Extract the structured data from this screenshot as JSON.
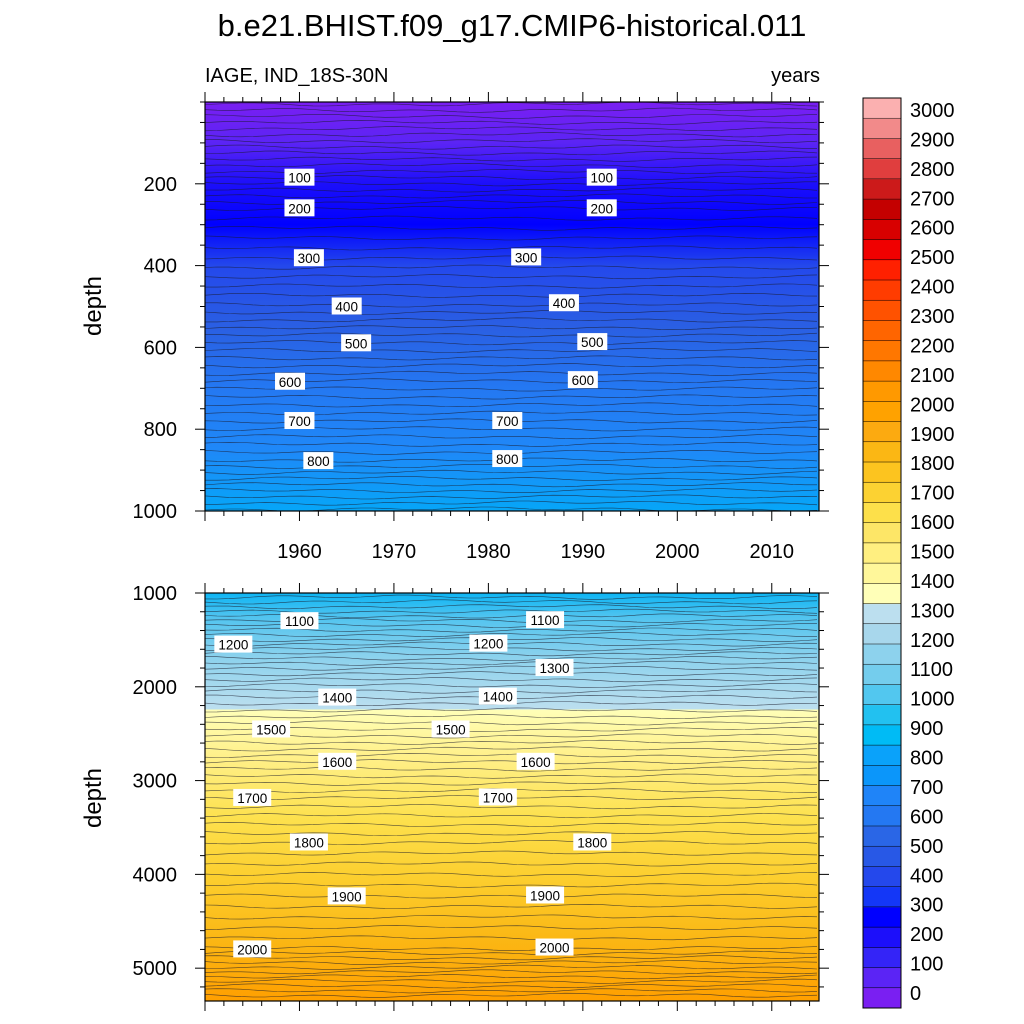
{
  "title": "b.e21.BHIST.f09_g17.CMIP6-historical.011",
  "subtitle_left": "IAGE, IND_18S-30N",
  "subtitle_right": "years",
  "colors": {
    "levels": [
      0,
      100,
      200,
      300,
      400,
      500,
      600,
      700,
      800,
      900,
      1000,
      1100,
      1200,
      1300,
      1400,
      1500,
      1600,
      1700,
      1800,
      1900,
      2000,
      2100,
      2200,
      2300,
      2400,
      2500,
      2600,
      2700,
      2800,
      2900,
      3000
    ],
    "fills": [
      "#7a1ff2",
      "#5b24f5",
      "#3424f7",
      "#1c0ffa",
      "#0000ff",
      "#1437f7",
      "#2448ec",
      "#2858e6",
      "#2a66e6",
      "#2478f2",
      "#1f84f8",
      "#0b96fa",
      "#0aa2fa",
      "#00bbf5",
      "#22c1f0",
      "#52c7ef",
      "#74cded",
      "#8dd2ed",
      "#a8d7ec",
      "#bcdfef",
      "#ffffb8",
      "#fff79a",
      "#ffef80",
      "#fde667",
      "#fde04a",
      "#fcd232",
      "#fcc41f",
      "#fbb714",
      "#fcaa10",
      "#ffa200",
      "#ff9900",
      "#ff8800",
      "#ff7700",
      "#ff6500",
      "#ff5200",
      "#ff3c00",
      "#ff2000",
      "#f00000",
      "#d80000",
      "#c40000",
      "#cc1a1a",
      "#e03e3e",
      "#e86060",
      "#f28a8a",
      "#fbb0b0"
    ]
  },
  "chart_data": [
    {
      "type": "heatmap",
      "panel": "top",
      "variable": "IAGE",
      "region": "IND_18S-30N",
      "units": "years",
      "xlim": [
        1950,
        2015
      ],
      "x_ticks": [
        1960,
        1970,
        1980,
        1990,
        2000,
        2010
      ],
      "ylim": [
        1000,
        0
      ],
      "y_ticks": [
        200,
        400,
        600,
        800,
        1000
      ],
      "ylabel": "depth",
      "contour_interval": 20,
      "contour_labels": [
        {
          "value": "100",
          "year": 1960,
          "depth": 185
        },
        {
          "value": "100",
          "year": 1992,
          "depth": 185
        },
        {
          "value": "200",
          "year": 1960,
          "depth": 260
        },
        {
          "value": "200",
          "year": 1992,
          "depth": 260
        },
        {
          "value": "300",
          "year": 1961,
          "depth": 382
        },
        {
          "value": "300",
          "year": 1984,
          "depth": 380
        },
        {
          "value": "400",
          "year": 1965,
          "depth": 500
        },
        {
          "value": "400",
          "year": 1988,
          "depth": 492
        },
        {
          "value": "500",
          "year": 1966,
          "depth": 590
        },
        {
          "value": "500",
          "year": 1991,
          "depth": 587
        },
        {
          "value": "600",
          "year": 1959,
          "depth": 684
        },
        {
          "value": "600",
          "year": 1990,
          "depth": 680
        },
        {
          "value": "700",
          "year": 1960,
          "depth": 780
        },
        {
          "value": "700",
          "year": 1982,
          "depth": 780
        },
        {
          "value": "800",
          "year": 1962,
          "depth": 878
        },
        {
          "value": "800",
          "year": 1982,
          "depth": 873
        }
      ]
    },
    {
      "type": "heatmap",
      "panel": "bottom",
      "variable": "IAGE",
      "region": "IND_18S-30N",
      "units": "years",
      "xlim": [
        1950,
        2015
      ],
      "x_ticks": [
        1960,
        1970,
        1980,
        1990,
        2000,
        2010
      ],
      "ylim": [
        5350,
        1000
      ],
      "y_ticks": [
        1000,
        2000,
        3000,
        4000,
        5000
      ],
      "ylabel": "depth",
      "contour_interval": 20,
      "contour_labels": [
        {
          "value": "1100",
          "year": 1960,
          "depth": 1300
        },
        {
          "value": "1100",
          "year": 1986,
          "depth": 1290
        },
        {
          "value": "1200",
          "year": 1953,
          "depth": 1550
        },
        {
          "value": "1200",
          "year": 1980,
          "depth": 1540
        },
        {
          "value": "1300",
          "year": 1987,
          "depth": 1800
        },
        {
          "value": "1400",
          "year": 1964,
          "depth": 2115
        },
        {
          "value": "1400",
          "year": 1981,
          "depth": 2105
        },
        {
          "value": "1500",
          "year": 1957,
          "depth": 2455
        },
        {
          "value": "1500",
          "year": 1976,
          "depth": 2455
        },
        {
          "value": "1600",
          "year": 1964,
          "depth": 2800
        },
        {
          "value": "1600",
          "year": 1985,
          "depth": 2800
        },
        {
          "value": "1700",
          "year": 1955,
          "depth": 3185
        },
        {
          "value": "1700",
          "year": 1981,
          "depth": 3180
        },
        {
          "value": "1800",
          "year": 1961,
          "depth": 3660
        },
        {
          "value": "1800",
          "year": 1991,
          "depth": 3660
        },
        {
          "value": "1900",
          "year": 1965,
          "depth": 4235
        },
        {
          "value": "1900",
          "year": 1986,
          "depth": 4225
        },
        {
          "value": "2000",
          "year": 1955,
          "depth": 4800
        },
        {
          "value": "2000",
          "year": 1987,
          "depth": 4780
        }
      ]
    }
  ],
  "colorbar_labels": [
    "3000",
    "2900",
    "2800",
    "2700",
    "2600",
    "2500",
    "2400",
    "2300",
    "2200",
    "2100",
    "2000",
    "1900",
    "1800",
    "1700",
    "1600",
    "1500",
    "1400",
    "1300",
    "1200",
    "1100",
    "1000",
    "900",
    "800",
    "700",
    "600",
    "500",
    "400",
    "300",
    "200",
    "100",
    "0"
  ]
}
